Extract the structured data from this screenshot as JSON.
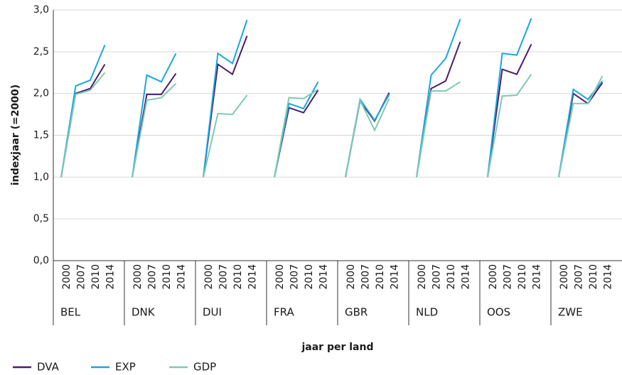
{
  "chart_data": {
    "type": "line",
    "y_label": "indexjaar (=2000)",
    "x_label": "jaar per land",
    "groups": [
      "BEL",
      "DNK",
      "DUI",
      "FRA",
      "GBR",
      "NLD",
      "OOS",
      "ZWE"
    ],
    "categories": [
      "2000",
      "2007",
      "2010",
      "2014",
      "2000",
      "2007",
      "2010",
      "2014",
      "2000",
      "2007",
      "2010",
      "2014",
      "2000",
      "2007",
      "2010",
      "2014",
      "2000",
      "2007",
      "2010",
      "2014",
      "2000",
      "2007",
      "2010",
      "2014",
      "2000",
      "2007",
      "2010",
      "2014",
      "2000",
      "2007",
      "2010",
      "2014"
    ],
    "ylim": [
      0,
      3
    ],
    "yticks": [
      {
        "value": 0,
        "label": "0,0"
      },
      {
        "value": 0.5,
        "label": "0,5"
      },
      {
        "value": 1,
        "label": "1,0"
      },
      {
        "value": 1.5,
        "label": "1,5"
      },
      {
        "value": 2,
        "label": "2,0"
      },
      {
        "value": 2.5,
        "label": "2,5"
      },
      {
        "value": 3,
        "label": "3,0"
      }
    ],
    "grid": true,
    "legend": "bottom-left",
    "series": [
      {
        "name": "DVA",
        "color": "#4a1d6e",
        "values": [
          1.0,
          2.0,
          2.06,
          2.35,
          1.0,
          1.99,
          1.99,
          2.24,
          1.0,
          2.35,
          2.23,
          2.69,
          1.0,
          1.83,
          1.77,
          2.04,
          1.0,
          1.91,
          1.67,
          2.01,
          1.0,
          2.06,
          2.15,
          2.62,
          1.0,
          2.29,
          2.23,
          2.59,
          1.0,
          2.0,
          1.88,
          2.13
        ]
      },
      {
        "name": "EXP",
        "color": "#1ba5df",
        "values": [
          1.0,
          2.09,
          2.16,
          2.58,
          1.0,
          2.22,
          2.14,
          2.48,
          1.0,
          2.48,
          2.36,
          2.88,
          1.0,
          1.88,
          1.82,
          2.14,
          1.0,
          1.93,
          1.68,
          1.99,
          1.0,
          2.22,
          2.42,
          2.89,
          1.0,
          2.48,
          2.46,
          2.9,
          1.0,
          2.05,
          1.93,
          2.15
        ]
      },
      {
        "name": "GDP",
        "color": "#7ec9b3",
        "values": [
          1.0,
          1.99,
          2.04,
          2.25,
          1.0,
          1.92,
          1.95,
          2.12,
          1.0,
          1.76,
          1.75,
          1.98,
          1.0,
          1.95,
          1.94,
          2.05,
          1.0,
          1.92,
          1.56,
          1.94,
          1.0,
          2.03,
          2.03,
          2.14,
          1.0,
          1.97,
          1.98,
          2.23,
          1.0,
          1.88,
          1.88,
          2.21
        ]
      }
    ]
  }
}
